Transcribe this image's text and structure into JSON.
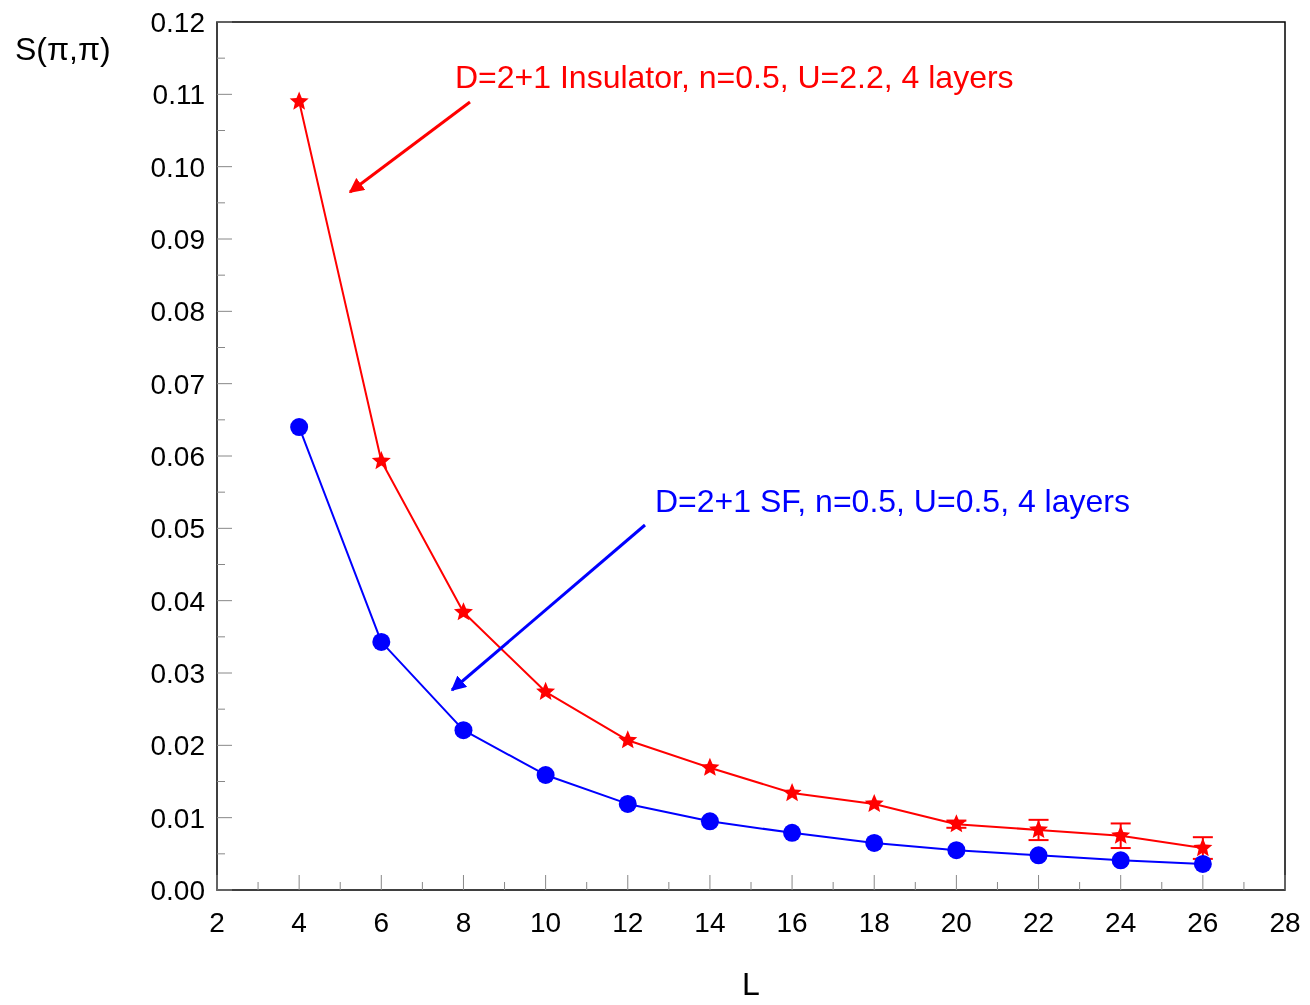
{
  "chart_data": {
    "type": "line",
    "xlabel": "L",
    "ylabel": "S(π,π)",
    "x": [
      4,
      6,
      8,
      10,
      12,
      14,
      16,
      18,
      20,
      22,
      24,
      26
    ],
    "series": [
      {
        "name": "D=2+1 Insulator, n=0.5, U=2.2, 4 layers",
        "color": "#ff0000",
        "marker": "star",
        "values": [
          0.109,
          0.0593,
          0.0384,
          0.0274,
          0.0207,
          0.0169,
          0.0134,
          0.0119,
          0.0091,
          0.0083,
          0.0075,
          0.0058
        ],
        "errors": [
          null,
          null,
          null,
          null,
          null,
          null,
          null,
          null,
          0.0005,
          0.0014,
          0.0017,
          0.0015
        ]
      },
      {
        "name": "D=2+1 SF, n=0.5, U=0.5, 4 layers",
        "color": "#0000ff",
        "marker": "circle",
        "values": [
          0.064,
          0.0343,
          0.0221,
          0.0159,
          0.0119,
          0.0095,
          0.0079,
          0.0065,
          0.0055,
          0.0048,
          0.0041,
          0.0036
        ]
      }
    ],
    "xlim": [
      2,
      28
    ],
    "xticks": [
      2,
      4,
      6,
      8,
      10,
      12,
      14,
      16,
      18,
      20,
      22,
      24,
      26,
      28
    ],
    "ylim": [
      0,
      0.12
    ],
    "yticks": [
      {
        "value": 0,
        "label": "0.00"
      },
      0.01,
      0.02,
      0.03,
      0.04,
      0.05,
      0.06,
      0.07,
      0.08,
      0.09,
      {
        "value": 0.1,
        "label": "0.10"
      },
      0.11,
      0.12
    ],
    "grid": false
  }
}
